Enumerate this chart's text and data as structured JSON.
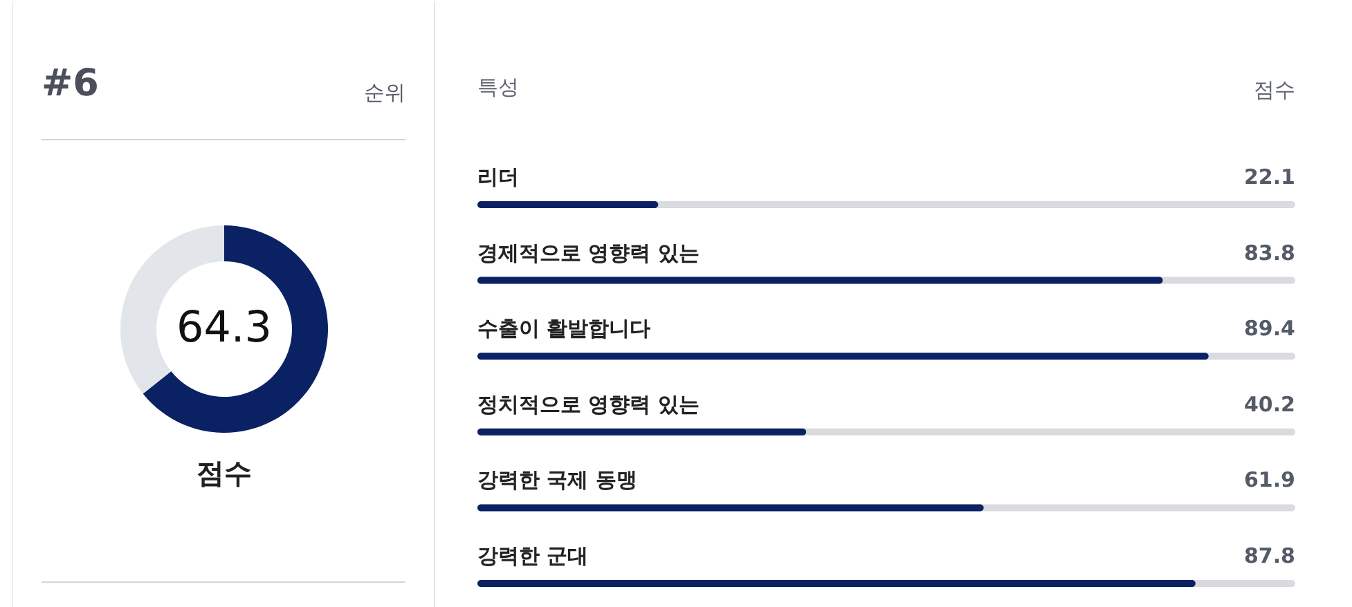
{
  "chart_data": [
    {
      "type": "donut",
      "categories": [
        null,
        null
      ],
      "values": [
        64.3,
        35.7
      ],
      "colors": [
        "#0a2263",
        "#e2e6eb"
      ],
      "value_labels": [
        "64.3",
        null
      ],
      "annotations": [
        "#6",
        "순위",
        "점수"
      ]
    },
    {
      "type": "bar",
      "orientation": "horizontal",
      "ylabel": "특성",
      "xlabel": "점수",
      "categories": [
        "리더",
        "경제적으로 영향력 있는",
        "수출이 활발합니다",
        "정치적으로 영향력 있는",
        "강력한 국제 동맹",
        "강력한 군대"
      ],
      "values": [
        22.1,
        83.8,
        89.4,
        40.2,
        61.9,
        87.8
      ],
      "color": "#0a2263",
      "xlim": [
        0,
        100
      ],
      "data_labels": true,
      "tick_labels": false
    }
  ]
}
